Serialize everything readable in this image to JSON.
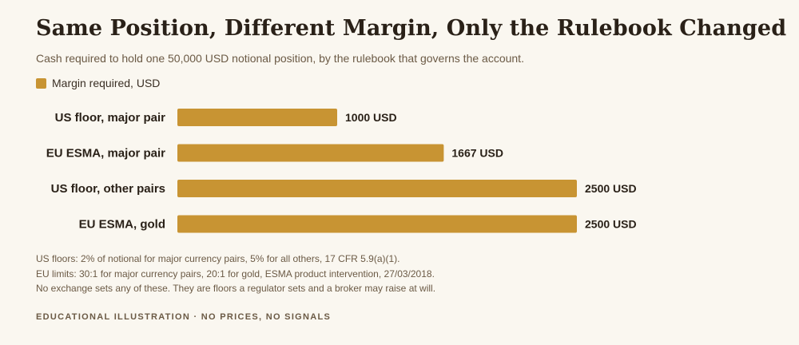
{
  "title": "Same Position, Different Margin, Only the Rulebook Changed",
  "subtitle": "Cash required to hold one 50,000 USD notional position, by the rulebook that governs the account.",
  "legend": {
    "label": "Margin required, USD",
    "color": "#c89433"
  },
  "notes": [
    "US floors: 2% of notional for major currency pairs, 5% for all others, 17 CFR 5.9(a)(1).",
    "EU limits: 30:1 for major currency pairs, 20:1 for gold, ESMA product intervention, 27/03/2018.",
    "No exchange sets any of these. They are floors a regulator sets and a broker may raise at will."
  ],
  "footer": "EDUCATIONAL ILLUSTRATION · NO PRICES, NO SIGNALS",
  "chart_data": {
    "type": "bar",
    "orientation": "horizontal",
    "categories": [
      "US floor, major pair",
      "EU ESMA, major pair",
      "US floor, other pairs",
      "EU ESMA, gold"
    ],
    "series": [
      {
        "name": "Margin required, USD",
        "values": [
          1000,
          1667,
          2500,
          2500
        ],
        "color": "#c89433"
      }
    ],
    "data_labels": [
      "1000 USD",
      "1667 USD",
      "2500 USD",
      "2500 USD"
    ],
    "xlim": [
      0,
      2500
    ],
    "grid": false,
    "legend_position": "top-left"
  }
}
